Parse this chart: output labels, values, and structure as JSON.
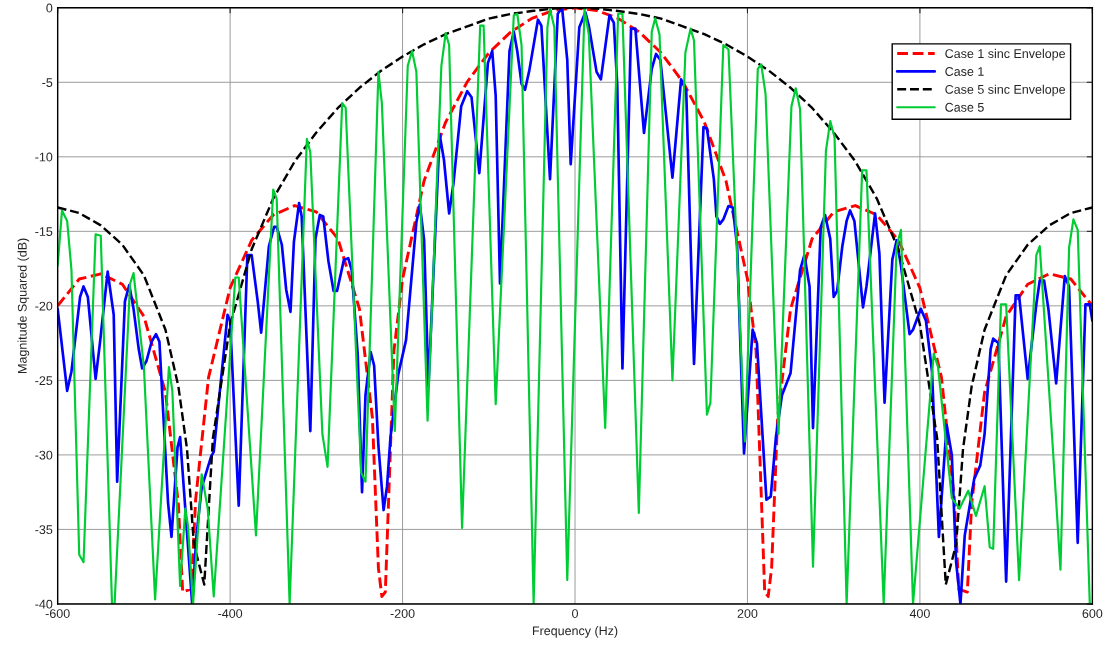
{
  "chart_data": {
    "type": "line",
    "xlabel": "Frequency (Hz)",
    "ylabel": "Magnitude Squared (dB)",
    "xlim": [
      -600,
      600
    ],
    "xticks": [
      -600,
      -400,
      -200,
      0,
      200,
      400,
      600
    ],
    "ylim": [
      -40,
      0
    ],
    "yticks": [
      -40,
      -35,
      -30,
      -25,
      -20,
      -15,
      -10,
      -5,
      0
    ],
    "grid": true,
    "legend": "top right",
    "marker": "none",
    "series": [
      {
        "name": "Case 1 sinc Envelope",
        "color": "#ff0000",
        "line_style": "dashed",
        "x": [
          -600,
          -575,
          -550,
          -525,
          -500,
          -475,
          -460,
          -455,
          -445,
          -440,
          -425,
          -400,
          -375,
          -350,
          -325,
          -300,
          -275,
          -250,
          -235,
          -228,
          -224,
          -220,
          -210,
          -200,
          -175,
          -150,
          -125,
          -100,
          -75,
          -50,
          -25,
          0,
          25,
          50,
          75,
          100,
          125,
          150,
          175,
          200,
          210,
          220,
          224,
          228,
          235,
          250,
          275,
          300,
          325,
          350,
          375,
          400,
          425,
          440,
          445,
          455,
          460,
          475,
          500,
          525,
          550,
          575,
          600
        ],
        "values": [
          -20.0,
          -18.2,
          -17.85,
          -18.55,
          -20.7,
          -25.8,
          -33.3,
          -39.2,
          -39.0,
          -33.0,
          -24.8,
          -18.8,
          -15.6,
          -13.9,
          -13.27,
          -13.7,
          -15.5,
          -20.2,
          -27.5,
          -37.6,
          -39.5,
          -39.2,
          -23.0,
          -18.2,
          -11.6,
          -7.67,
          -4.97,
          -3.03,
          -1.65,
          -0.71,
          -0.18,
          0,
          -0.18,
          -0.71,
          -1.65,
          -3.03,
          -4.97,
          -7.67,
          -11.6,
          -18.2,
          -23.0,
          -39.2,
          -39.5,
          -37.6,
          -27.5,
          -20.2,
          -15.5,
          -13.7,
          -13.27,
          -13.9,
          -15.6,
          -18.8,
          -24.8,
          -33.0,
          -39.0,
          -39.2,
          -33.3,
          -25.8,
          -20.7,
          -18.55,
          -17.85,
          -18.2,
          -20.0
        ]
      },
      {
        "name": "Case 1",
        "color": "#0000ff",
        "line_style": "solid",
        "x": [
          -600,
          -589,
          -584,
          -574,
          -570,
          -565,
          -556,
          -551,
          -542,
          -535,
          -531,
          -522,
          -517,
          -512,
          -506,
          -502,
          -497,
          -491,
          -486,
          -482,
          -472,
          -468,
          -461,
          -458,
          -444,
          -439,
          -433,
          -422,
          -419,
          -403,
          -400,
          -390,
          -380,
          -375,
          -368,
          -364,
          -355,
          -349,
          -346,
          -340,
          -335,
          -330,
          -326,
          -320,
          -317,
          -307,
          -301,
          -296,
          -292,
          -286,
          -280,
          -276,
          -268,
          -263,
          -259,
          -252,
          -247,
          -243,
          -237,
          -233,
          -228,
          -222,
          -218,
          -214,
          -205,
          -196,
          -184,
          -180,
          -175,
          -170,
          -157,
          -152,
          -146,
          -141,
          -132,
          -125,
          -120,
          -111,
          -101,
          -96,
          -92,
          -87,
          -76,
          -71,
          -67,
          -62,
          -58,
          -53,
          -43,
          -39,
          -29,
          -20,
          -15,
          -9,
          -5,
          5,
          12,
          16,
          25,
          30,
          40,
          45,
          49,
          55,
          65,
          70,
          80,
          89,
          94,
          99,
          113,
          123,
          129,
          138,
          149,
          153,
          161,
          164,
          168,
          172,
          178,
          183,
          188,
          196,
          206,
          211,
          222,
          227,
          233,
          240,
          250,
          261,
          266,
          272,
          276,
          285,
          290,
          296,
          300,
          304,
          310,
          315,
          319,
          324,
          334,
          338,
          348,
          353,
          359,
          368,
          373,
          378,
          388,
          392,
          401,
          407,
          414,
          422,
          431,
          437,
          442,
          447,
          452,
          463,
          470,
          475,
          482,
          485,
          491,
          500,
          511,
          515,
          525,
          535,
          539,
          544,
          549,
          558,
          568,
          573,
          583,
          592,
          597,
          600
        ],
        "values": [
          -20.2,
          -25.7,
          -24.4,
          -19.4,
          -18.7,
          -19.4,
          -24.9,
          -22.5,
          -17.7,
          -20.6,
          -31.8,
          -19.7,
          -18.6,
          -20.2,
          -22.9,
          -24.2,
          -23.7,
          -22.4,
          -21.9,
          -22.4,
          -33.2,
          -35.5,
          -29.5,
          -28.8,
          -40,
          -35.4,
          -32.2,
          -30.1,
          -29.8,
          -20.6,
          -21.0,
          -33.4,
          -16.6,
          -16.6,
          -19.7,
          -21.8,
          -16.0,
          -14.7,
          -14.7,
          -15.9,
          -18.9,
          -20.4,
          -15.7,
          -13.1,
          -14.0,
          -28.4,
          -15.5,
          -13.9,
          -14.0,
          -17.0,
          -19.0,
          -19.0,
          -16.9,
          -16.8,
          -17.6,
          -23.3,
          -32.5,
          -26.0,
          -23.1,
          -24.0,
          -29.4,
          -33.7,
          -32.1,
          -28.8,
          -24.6,
          -22.3,
          -14.4,
          -13.2,
          -15.6,
          -25.4,
          -8.5,
          -10.2,
          -13.8,
          -11.8,
          -6.6,
          -5.6,
          -6.0,
          -11.1,
          -3.7,
          -2.9,
          -5.9,
          -18.5,
          -2.9,
          -1.6,
          -2.9,
          -5.1,
          -5.5,
          -4.2,
          -0.8,
          -1.2,
          -11.5,
          -0.4,
          0,
          -3.5,
          -10.5,
          -1.3,
          -0.3,
          -1.2,
          -4.3,
          -4.8,
          -0.5,
          -1.0,
          -5.2,
          -24.2,
          -1.4,
          -1.4,
          -8.4,
          -4.1,
          -3.1,
          -3.5,
          -11.4,
          -4.8,
          -5.6,
          -23.9,
          -8.0,
          -8.1,
          -11.5,
          -14.0,
          -14.5,
          -14.2,
          -13.3,
          -13.4,
          -16.0,
          -29.9,
          -21.6,
          -22.5,
          -33.0,
          -32.8,
          -28.8,
          -26.0,
          -24.5,
          -17.6,
          -16.6,
          -18.7,
          -28.2,
          -14.7,
          -13.9,
          -15.5,
          -19.4,
          -19.0,
          -16.0,
          -14.3,
          -13.6,
          -14.3,
          -20.1,
          -18.7,
          -13.8,
          -16.5,
          -26.5,
          -16.9,
          -15.6,
          -17.3,
          -21.9,
          -21.6,
          -20.2,
          -21.0,
          -24.4,
          -35.5,
          -28.0,
          -30.0,
          -37.2,
          -40,
          -35.4,
          -31.6,
          -30.7,
          -28.6,
          -22.9,
          -22.2,
          -22.5,
          -38.5,
          -19.3,
          -19.3,
          -24.9,
          -19.9,
          -18.3,
          -18.3,
          -20.2,
          -25.2,
          -18.0,
          -18.7,
          -35.9,
          -19.9,
          -19.9,
          -21.0
        ]
      },
      {
        "name": "Case 5 sinc Envelope",
        "color": "#000000",
        "line_style": "dashed",
        "x": [
          -600,
          -575,
          -550,
          -525,
          -500,
          -475,
          -460,
          -450,
          -442,
          -430,
          -420,
          -400,
          -375,
          -350,
          -325,
          -300,
          -275,
          -250,
          -225,
          -200,
          -175,
          -150,
          -125,
          -100,
          -75,
          -50,
          -25,
          0,
          25,
          50,
          75,
          100,
          125,
          150,
          175,
          200,
          225,
          250,
          275,
          300,
          325,
          350,
          375,
          400,
          420,
          430,
          442,
          450,
          460,
          475,
          500,
          525,
          550,
          575,
          600
        ],
        "values": [
          -13.4,
          -13.77,
          -14.6,
          -15.9,
          -17.95,
          -21.6,
          -25.4,
          -29.6,
          -36.0,
          -38.7,
          -28.9,
          -21.25,
          -16.2,
          -12.8,
          -10.3,
          -8.37,
          -6.72,
          -5.37,
          -4.23,
          -3.27,
          -2.45,
          -1.77,
          -1.25,
          -0.73,
          -0.42,
          -0.22,
          -0.05,
          0,
          -0.05,
          -0.22,
          -0.42,
          -0.73,
          -1.25,
          -1.77,
          -2.45,
          -3.27,
          -4.23,
          -5.37,
          -6.72,
          -8.37,
          -10.3,
          -12.8,
          -16.2,
          -21.25,
          -28.9,
          -38.7,
          -36.0,
          -29.6,
          -25.4,
          -21.6,
          -17.95,
          -15.9,
          -14.6,
          -13.77,
          -13.4
        ]
      },
      {
        "name": "Case 5",
        "color": "#00cc33",
        "line_style": "solid",
        "x": [
          -600,
          -595,
          -589,
          -584,
          -575,
          -570,
          -556,
          -550,
          -537,
          -534,
          -516,
          -512,
          -500,
          -487,
          -471,
          -467,
          -458,
          -452,
          -449,
          -443,
          -433,
          -426,
          -419,
          -394,
          -390,
          -370,
          -350,
          -346,
          -331,
          -311,
          -307,
          -293,
          -287,
          -270,
          -266,
          -248,
          -243,
          -228,
          -224,
          -209,
          -194,
          -189,
          -184,
          -171,
          -155,
          -150,
          -146,
          -131,
          -110,
          -106,
          -92,
          -71,
          -67,
          -62,
          -48,
          -32,
          -29,
          -24,
          -9,
          11,
          16,
          35,
          50,
          55,
          74,
          89,
          93,
          98,
          113,
          128,
          134,
          138,
          153,
          157,
          172,
          178,
          197,
          212,
          216,
          221,
          236,
          251,
          256,
          261,
          276,
          291,
          296,
          301,
          315,
          333,
          338,
          358,
          373,
          378,
          392,
          416,
          421,
          437,
          446,
          456,
          465,
          475,
          481,
          485,
          494,
          500,
          515,
          535,
          539,
          554,
          563,
          573,
          578,
          583,
          597,
          600
        ],
        "values": [
          -17.3,
          -13.6,
          -14.3,
          -17.6,
          -36.7,
          -37.2,
          -15.2,
          -15.3,
          -40,
          -40,
          -18.5,
          -17.8,
          -24.1,
          -39.7,
          -24.1,
          -25.7,
          -38.8,
          -33.6,
          -34.7,
          -40,
          -31.3,
          -33.6,
          -39.5,
          -18.1,
          -18.1,
          -35.4,
          -12.2,
          -12.8,
          -40,
          -8.8,
          -9.7,
          -28.6,
          -30.8,
          -6.4,
          -6.7,
          -31.2,
          -31.8,
          -4.3,
          -6.4,
          -28.4,
          -3.9,
          -2.9,
          -4.3,
          -27.7,
          -3.9,
          -1.7,
          -2.5,
          -34.9,
          -1.2,
          -1.2,
          -26.6,
          -0.5,
          -0.4,
          -2.5,
          -40,
          -1.3,
          -0.1,
          -1.3,
          -38.4,
          -0.1,
          -1.8,
          -28.2,
          -0.4,
          -0.4,
          -33.9,
          -1.6,
          -0.7,
          -1.8,
          -25.0,
          -3.0,
          -1.4,
          -2.2,
          -27.3,
          -26.5,
          -2.5,
          -2.8,
          -29.1,
          -4.1,
          -3.8,
          -5.8,
          -28.6,
          -6.6,
          -5.4,
          -6.8,
          -37.5,
          -9.6,
          -7.6,
          -8.7,
          -40,
          -10.9,
          -10.9,
          -40,
          -16.0,
          -14.9,
          -40,
          -23.2,
          -24.1,
          -32.9,
          -33.6,
          -32.4,
          -34.1,
          -32.1,
          -36.2,
          -36.3,
          -19.9,
          -19.9,
          -38.4,
          -16.6,
          -16.0,
          -29.4,
          -37.7,
          -16.1,
          -14.2,
          -14.9,
          -40,
          -40
        ]
      }
    ]
  }
}
